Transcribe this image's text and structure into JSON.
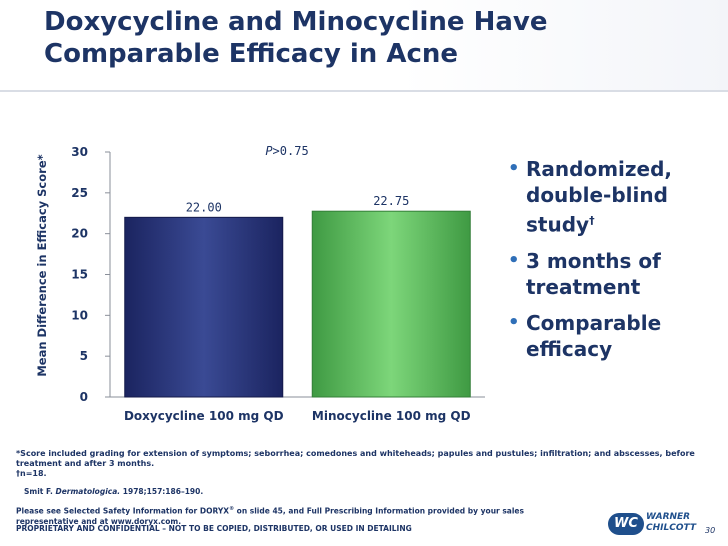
{
  "slide": {
    "title_line1": "Doxycycline and Minocycline Have",
    "title_line2": "Comparable Efficacy in Acne",
    "page_number": "30"
  },
  "chart_data": {
    "type": "bar",
    "categories": [
      "Doxycycline 100 mg QD",
      "Minocycline 100 mg QD"
    ],
    "values": [
      22.0,
      22.75
    ],
    "value_labels": [
      "22.00",
      "22.75"
    ],
    "ylabel": "Mean Difference in Efficacy Score*",
    "ylim": [
      0,
      30
    ],
    "yticks": [
      0,
      5,
      10,
      15,
      20,
      25,
      30
    ],
    "annotation_italic": "P",
    "annotation_rest": ">0.75",
    "colors": [
      "#27306f",
      "#5cb85c"
    ],
    "grid": false,
    "legend": "none"
  },
  "bullets": [
    {
      "text": "Randomized, double-blind study",
      "sup": "†"
    },
    {
      "text": "3 months of treatment",
      "sup": ""
    },
    {
      "text": "Comparable efficacy",
      "sup": ""
    }
  ],
  "footnotes": {
    "score": "*Score included grading for extension of symptoms; seborrhea; comedones and whiteheads; papules and pustules; infiltration; and abscesses, before treatment and after 3 months.",
    "n": "†n=18."
  },
  "citation": {
    "author": "Smit F.",
    "journal": "Dermatologica.",
    "details": "1978;157:186–190."
  },
  "notice": {
    "part1": "Please see Selected Safety Information for DORYX",
    "reg": "®",
    "part2": " on slide 45, and Full Prescribing Information provided by your sales representative and at www.doryx.com."
  },
  "confidential": "PROPRIETARY AND CONFIDENTIAL – NOT TO BE COPIED, DISTRIBUTED, OR USED IN DETAILING",
  "logo": {
    "badge": "WC",
    "line1": "WARNER",
    "line2": "CHILCOTT"
  }
}
